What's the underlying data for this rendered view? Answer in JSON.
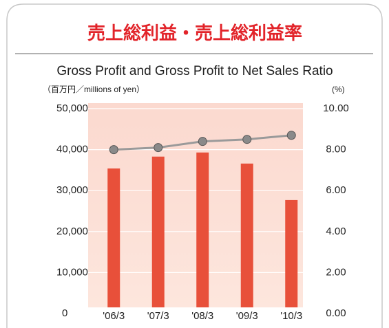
{
  "chart_data": {
    "type": "bar",
    "title": "売上総利益・売上総利益率",
    "subtitle": "Gross Profit and Gross Profit to Net Sales Ratio",
    "y_label": "（百万円／millions of yen）",
    "y2_label": "(%)",
    "categories": [
      "'06/3",
      "'07/3",
      "'08/3",
      "'09/3",
      "'10/3"
    ],
    "series": [
      {
        "type": "bar",
        "color": "#e8503a",
        "values": [
          35400,
          38300,
          39300,
          36600,
          27700
        ]
      },
      {
        "type": "line",
        "color": "#9a9a9a",
        "axis": "y2",
        "values": [
          8.0,
          8.1,
          8.4,
          8.5,
          8.7
        ]
      }
    ],
    "ylim": [
      0,
      50000
    ],
    "yticks": [
      0,
      {
        "value": 10000,
        "label": "10,000"
      },
      {
        "value": 20000,
        "label": "20,000"
      },
      {
        "value": 30000,
        "label": "30,000"
      },
      {
        "value": 40000,
        "label": "40,000"
      },
      {
        "value": 50000,
        "label": "50,000"
      }
    ],
    "y2lim": [
      0,
      10
    ],
    "y2ticks": [
      {
        "value": 0,
        "label": "0.00"
      },
      {
        "value": 2,
        "label": "2.00"
      },
      {
        "value": 4,
        "label": "4.00"
      },
      {
        "value": 6,
        "label": "6.00"
      },
      {
        "value": 8,
        "label": "8.00"
      },
      {
        "value": 10,
        "label": "10.00"
      }
    ],
    "grid": true
  }
}
